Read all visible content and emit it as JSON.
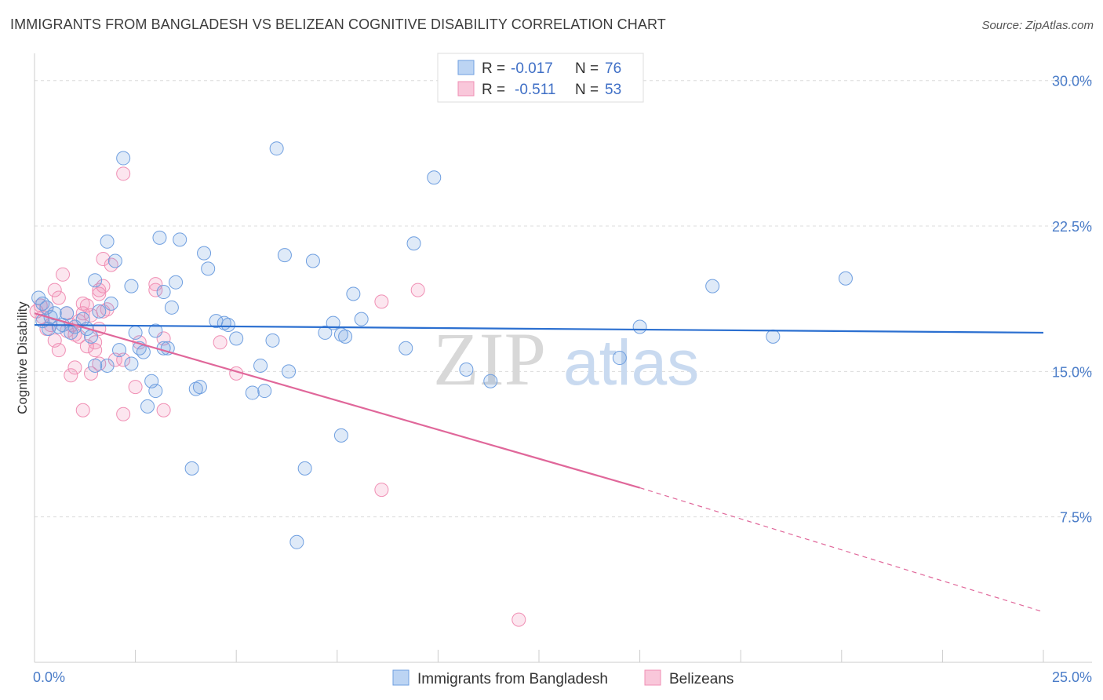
{
  "chart_data": {
    "type": "scatter",
    "title": "IMMIGRANTS FROM BANGLADESH VS BELIZEAN COGNITIVE DISABILITY CORRELATION CHART",
    "source": "Source: ZipAtlas.com",
    "xlabel": "",
    "ylabel": "Cognitive Disability",
    "xlim": [
      0,
      25
    ],
    "ylim": [
      0,
      31
    ],
    "x_tick_labels": [
      "0.0%",
      "25.0%"
    ],
    "y_ticks": [
      7.5,
      15.0,
      22.5,
      30.0
    ],
    "y_tick_labels": [
      "7.5%",
      "15.0%",
      "22.5%",
      "30.0%"
    ],
    "grid": true,
    "watermark": "ZIPatlas",
    "colors": {
      "blue": "#6f9fe0",
      "pink": "#f08fb4",
      "blue_line": "#2b6fd0",
      "pink_line": "#e0679a",
      "axis_text": "#4a7cc8"
    },
    "stats_legend": [
      {
        "series": "Immigrants from Bangladesh",
        "r_label": "R =",
        "r": "-0.017",
        "n_label": "N =",
        "n": "76"
      },
      {
        "series": "Belizeans",
        "r_label": "R =",
        "r": "-0.511",
        "n_label": "N =",
        "n": "53"
      }
    ],
    "series": [
      {
        "name": "Immigrants from Bangladesh",
        "color": "#6f9fe0",
        "trend": {
          "x": [
            0,
            25
          ],
          "y": [
            17.4,
            17.0
          ]
        },
        "points": [
          [
            2.2,
            26.0
          ],
          [
            6.0,
            26.5
          ],
          [
            9.9,
            25.0
          ],
          [
            1.8,
            21.7
          ],
          [
            3.1,
            21.9
          ],
          [
            3.6,
            21.8
          ],
          [
            4.2,
            21.1
          ],
          [
            6.2,
            21.0
          ],
          [
            6.9,
            20.7
          ],
          [
            9.4,
            21.6
          ],
          [
            2.0,
            20.7
          ],
          [
            4.3,
            20.3
          ],
          [
            1.5,
            19.7
          ],
          [
            3.5,
            19.6
          ],
          [
            2.4,
            19.4
          ],
          [
            3.2,
            19.1
          ],
          [
            7.9,
            19.0
          ],
          [
            20.1,
            19.8
          ],
          [
            16.8,
            19.4
          ],
          [
            0.3,
            18.3
          ],
          [
            1.9,
            18.5
          ],
          [
            3.4,
            18.3
          ],
          [
            0.5,
            18.0
          ],
          [
            0.8,
            18.0
          ],
          [
            1.2,
            17.7
          ],
          [
            4.5,
            17.6
          ],
          [
            4.7,
            17.5
          ],
          [
            7.4,
            17.5
          ],
          [
            8.1,
            17.7
          ],
          [
            0.2,
            17.6
          ],
          [
            0.6,
            17.3
          ],
          [
            0.9,
            17.0
          ],
          [
            1.4,
            16.8
          ],
          [
            2.5,
            17.0
          ],
          [
            7.2,
            17.0
          ],
          [
            7.6,
            16.9
          ],
          [
            7.7,
            16.8
          ],
          [
            15.0,
            17.3
          ],
          [
            5.0,
            16.7
          ],
          [
            5.9,
            16.6
          ],
          [
            18.3,
            16.8
          ],
          [
            2.1,
            16.1
          ],
          [
            2.6,
            16.2
          ],
          [
            3.2,
            16.2
          ],
          [
            3.3,
            16.2
          ],
          [
            9.2,
            16.2
          ],
          [
            14.5,
            15.7
          ],
          [
            1.5,
            15.3
          ],
          [
            1.8,
            15.3
          ],
          [
            2.4,
            15.4
          ],
          [
            5.6,
            15.3
          ],
          [
            6.3,
            15.0
          ],
          [
            10.7,
            15.1
          ],
          [
            11.3,
            14.5
          ],
          [
            2.9,
            14.5
          ],
          [
            3.0,
            14.0
          ],
          [
            4.0,
            14.1
          ],
          [
            4.1,
            14.2
          ],
          [
            5.4,
            13.9
          ],
          [
            5.7,
            14.0
          ],
          [
            2.8,
            13.2
          ],
          [
            7.6,
            11.7
          ],
          [
            3.9,
            10.0
          ],
          [
            6.7,
            10.0
          ],
          [
            6.5,
            6.2
          ],
          [
            0.4,
            17.8
          ],
          [
            1.0,
            17.3
          ],
          [
            0.2,
            18.5
          ],
          [
            0.7,
            17.4
          ],
          [
            1.3,
            17.2
          ],
          [
            0.1,
            18.8
          ],
          [
            0.35,
            17.2
          ],
          [
            2.7,
            16.0
          ],
          [
            4.8,
            17.4
          ],
          [
            3.0,
            17.1
          ],
          [
            1.6,
            18.1
          ]
        ]
      },
      {
        "name": "Belizeans",
        "color": "#f08fb4",
        "trend": {
          "x": [
            0,
            15.0
          ],
          "y": [
            18.0,
            9.0
          ]
        },
        "trend_dashed": {
          "x": [
            15.0,
            25
          ],
          "y": [
            9.0,
            2.6
          ]
        },
        "points": [
          [
            2.2,
            25.2
          ],
          [
            1.7,
            20.8
          ],
          [
            1.9,
            20.5
          ],
          [
            0.7,
            20.0
          ],
          [
            1.7,
            19.4
          ],
          [
            3.0,
            19.5
          ],
          [
            1.6,
            19.2
          ],
          [
            3.0,
            19.2
          ],
          [
            9.5,
            19.2
          ],
          [
            0.5,
            19.2
          ],
          [
            1.6,
            19.0
          ],
          [
            0.6,
            18.8
          ],
          [
            8.6,
            18.6
          ],
          [
            1.2,
            18.5
          ],
          [
            0.3,
            18.3
          ],
          [
            1.8,
            18.2
          ],
          [
            0.8,
            18.0
          ],
          [
            1.2,
            18.0
          ],
          [
            1.4,
            17.9
          ],
          [
            0.2,
            17.8
          ],
          [
            1.1,
            17.6
          ],
          [
            0.9,
            17.4
          ],
          [
            0.4,
            17.4
          ],
          [
            1.6,
            17.2
          ],
          [
            1.0,
            16.9
          ],
          [
            0.5,
            16.6
          ],
          [
            3.2,
            16.7
          ],
          [
            1.5,
            16.5
          ],
          [
            4.6,
            16.5
          ],
          [
            1.3,
            16.3
          ],
          [
            0.6,
            16.1
          ],
          [
            1.5,
            16.1
          ],
          [
            2.0,
            15.6
          ],
          [
            1.6,
            15.4
          ],
          [
            2.2,
            15.6
          ],
          [
            1.0,
            15.2
          ],
          [
            5.0,
            14.9
          ],
          [
            0.9,
            14.8
          ],
          [
            1.4,
            14.9
          ],
          [
            2.5,
            14.2
          ],
          [
            1.2,
            13.0
          ],
          [
            3.2,
            13.0
          ],
          [
            2.2,
            12.8
          ],
          [
            8.6,
            8.9
          ],
          [
            12.0,
            2.2
          ],
          [
            0.15,
            18.4
          ],
          [
            0.3,
            17.2
          ],
          [
            0.8,
            17.1
          ],
          [
            0.05,
            18.1
          ],
          [
            1.3,
            18.4
          ],
          [
            1.7,
            18.1
          ],
          [
            2.6,
            16.5
          ],
          [
            1.1,
            16.8
          ]
        ]
      }
    ],
    "bottom_legend": [
      "Immigrants from Bangladesh",
      "Belizeans"
    ]
  }
}
